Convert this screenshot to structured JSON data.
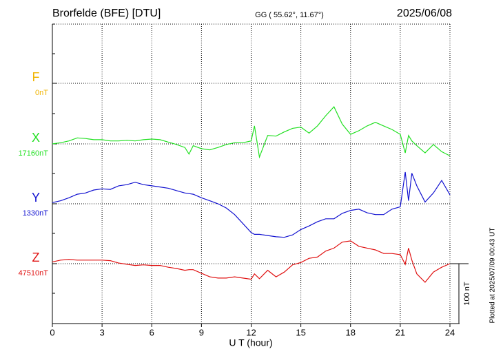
{
  "chart_data": {
    "type": "line",
    "title": "Brorfelde (BFE)  [DTU]",
    "subtitle": "GG ( 55.62°,  11.67°)",
    "date": "2025/06/08",
    "xlabel": "U T (hour)",
    "footnote": "Plotted at 2025/07/09 00:43 UT",
    "xlim": [
      0,
      24
    ],
    "xticks": [
      0,
      3,
      6,
      9,
      12,
      15,
      18,
      21,
      24
    ],
    "grid": true,
    "scale_bar": {
      "value": 100,
      "label": "100 nT"
    },
    "x": [
      0,
      0.5,
      1,
      1.5,
      2,
      2.5,
      3,
      3.5,
      4,
      4.5,
      5,
      5.5,
      6,
      6.5,
      7,
      7.5,
      8,
      8.25,
      8.5,
      9,
      9.5,
      10,
      10.5,
      11,
      11.5,
      12,
      12.2,
      12.5,
      13,
      13.5,
      14,
      14.5,
      15,
      15.5,
      16,
      16.5,
      17,
      17.5,
      18,
      18.5,
      19,
      19.5,
      20,
      20.5,
      21,
      21.3,
      21.5,
      21.7,
      22,
      22.5,
      23,
      23.5,
      24
    ],
    "series": [
      {
        "name": "F",
        "color": "#f0b400",
        "baseline": {
          "value": 0,
          "label": "0nT"
        }
      },
      {
        "name": "X",
        "color": "#22e022",
        "baseline": {
          "value": 17160,
          "label": "17160nT"
        },
        "values": [
          17160,
          17162,
          17165,
          17170,
          17169,
          17167,
          17167,
          17165,
          17165,
          17166,
          17165,
          17167,
          17168,
          17167,
          17163,
          17159,
          17154,
          17143,
          17157,
          17152,
          17150,
          17154,
          17159,
          17162,
          17162,
          17165,
          17190,
          17138,
          17174,
          17173,
          17180,
          17186,
          17188,
          17178,
          17190,
          17207,
          17222,
          17193,
          17176,
          17182,
          17190,
          17196,
          17190,
          17184,
          17176,
          17145,
          17174,
          17165,
          17157,
          17145,
          17159,
          17147,
          17140
        ]
      },
      {
        "name": "Y",
        "color": "#1010d0",
        "baseline": {
          "value": 1330,
          "label": "1330nT"
        },
        "values": [
          1332,
          1335,
          1340,
          1346,
          1348,
          1353,
          1355,
          1354,
          1360,
          1362,
          1366,
          1362,
          1360,
          1358,
          1356,
          1352,
          1348,
          1347,
          1346,
          1340,
          1335,
          1330,
          1323,
          1312,
          1297,
          1282,
          1279,
          1279,
          1277,
          1275,
          1274,
          1278,
          1287,
          1293,
          1300,
          1305,
          1305,
          1314,
          1319,
          1321,
          1315,
          1312,
          1312,
          1321,
          1325,
          1383,
          1335,
          1381,
          1360,
          1333,
          1348,
          1369,
          1345
        ]
      },
      {
        "name": "Z",
        "color": "#e01010",
        "baseline": {
          "value": 47510,
          "label": "47510nT"
        },
        "values": [
          47513,
          47516,
          47517,
          47516,
          47516,
          47516,
          47516,
          47515,
          47511,
          47509,
          47507,
          47508,
          47507,
          47507,
          47504,
          47502,
          47499,
          47500,
          47500,
          47494,
          47488,
          47486,
          47486,
          47488,
          47486,
          47484,
          47493,
          47485,
          47499,
          47488,
          47496,
          47508,
          47512,
          47519,
          47521,
          47531,
          47536,
          47546,
          47548,
          47539,
          47536,
          47533,
          47527,
          47527,
          47525,
          47509,
          47536,
          47516,
          47493,
          47479,
          47496,
          47504,
          47510
        ]
      }
    ]
  }
}
